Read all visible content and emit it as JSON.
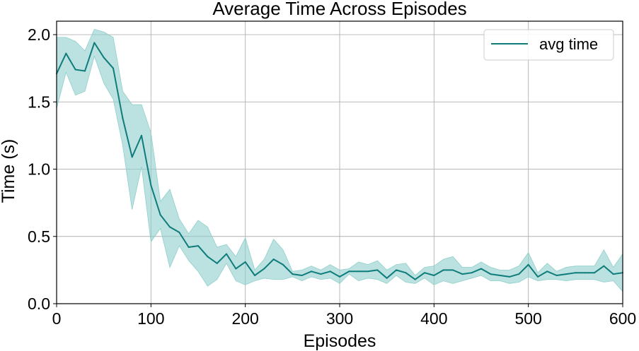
{
  "chart_data": {
    "type": "line",
    "title": "Average Time Across Episodes",
    "xlabel": "Episodes",
    "ylabel": "Time (s)",
    "xlim": [
      0,
      600
    ],
    "ylim": [
      0,
      2.1
    ],
    "xticks": [
      0,
      100,
      200,
      300,
      400,
      500,
      600
    ],
    "yticks": [
      0.0,
      0.5,
      1.0,
      1.5,
      2.0
    ],
    "xtick_labels": [
      "0",
      "100",
      "200",
      "300",
      "400",
      "500",
      "600"
    ],
    "ytick_labels": [
      "0.0",
      "0.5",
      "1.0",
      "1.5",
      "2.0"
    ],
    "grid": true,
    "legend_position": "top-right",
    "series": [
      {
        "name": "avg time",
        "color": "#0e7c7b",
        "band_color": "#8ecfcb",
        "x": [
          0,
          10,
          20,
          30,
          40,
          50,
          60,
          70,
          80,
          90,
          100,
          110,
          120,
          130,
          140,
          150,
          160,
          170,
          180,
          190,
          200,
          210,
          220,
          230,
          240,
          250,
          260,
          270,
          280,
          290,
          300,
          310,
          320,
          330,
          340,
          350,
          360,
          370,
          380,
          390,
          400,
          410,
          420,
          430,
          440,
          450,
          460,
          470,
          480,
          490,
          500,
          510,
          520,
          530,
          540,
          550,
          560,
          570,
          580,
          590,
          600
        ],
        "y": [
          1.71,
          1.86,
          1.74,
          1.73,
          1.94,
          1.83,
          1.75,
          1.38,
          1.09,
          1.25,
          0.88,
          0.66,
          0.57,
          0.53,
          0.42,
          0.43,
          0.35,
          0.3,
          0.37,
          0.26,
          0.31,
          0.21,
          0.26,
          0.33,
          0.29,
          0.22,
          0.21,
          0.24,
          0.22,
          0.24,
          0.2,
          0.24,
          0.24,
          0.24,
          0.25,
          0.19,
          0.25,
          0.23,
          0.18,
          0.23,
          0.21,
          0.25,
          0.25,
          0.22,
          0.23,
          0.26,
          0.22,
          0.21,
          0.2,
          0.22,
          0.29,
          0.2,
          0.24,
          0.21,
          0.22,
          0.23,
          0.23,
          0.23,
          0.28,
          0.22,
          0.23
        ],
        "upper": [
          1.98,
          1.98,
          1.95,
          1.88,
          2.04,
          2.02,
          1.98,
          1.58,
          1.48,
          1.48,
          1.27,
          0.76,
          0.85,
          0.63,
          0.52,
          0.62,
          0.57,
          0.42,
          0.44,
          0.35,
          0.49,
          0.25,
          0.33,
          0.48,
          0.4,
          0.24,
          0.25,
          0.28,
          0.25,
          0.29,
          0.25,
          0.26,
          0.31,
          0.29,
          0.32,
          0.25,
          0.29,
          0.3,
          0.21,
          0.27,
          0.28,
          0.33,
          0.35,
          0.27,
          0.27,
          0.31,
          0.27,
          0.25,
          0.25,
          0.28,
          0.38,
          0.23,
          0.3,
          0.24,
          0.27,
          0.28,
          0.28,
          0.28,
          0.4,
          0.27,
          0.37
        ],
        "lower": [
          1.45,
          1.72,
          1.55,
          1.58,
          1.84,
          1.64,
          1.52,
          1.18,
          0.7,
          1.02,
          0.46,
          0.56,
          0.27,
          0.43,
          0.32,
          0.24,
          0.13,
          0.18,
          0.3,
          0.17,
          0.14,
          0.17,
          0.19,
          0.18,
          0.18,
          0.2,
          0.17,
          0.2,
          0.18,
          0.19,
          0.15,
          0.22,
          0.17,
          0.19,
          0.18,
          0.15,
          0.21,
          0.16,
          0.15,
          0.19,
          0.14,
          0.17,
          0.15,
          0.17,
          0.19,
          0.21,
          0.17,
          0.17,
          0.15,
          0.16,
          0.2,
          0.17,
          0.18,
          0.18,
          0.17,
          0.18,
          0.18,
          0.18,
          0.16,
          0.17,
          0.09
        ]
      }
    ]
  }
}
